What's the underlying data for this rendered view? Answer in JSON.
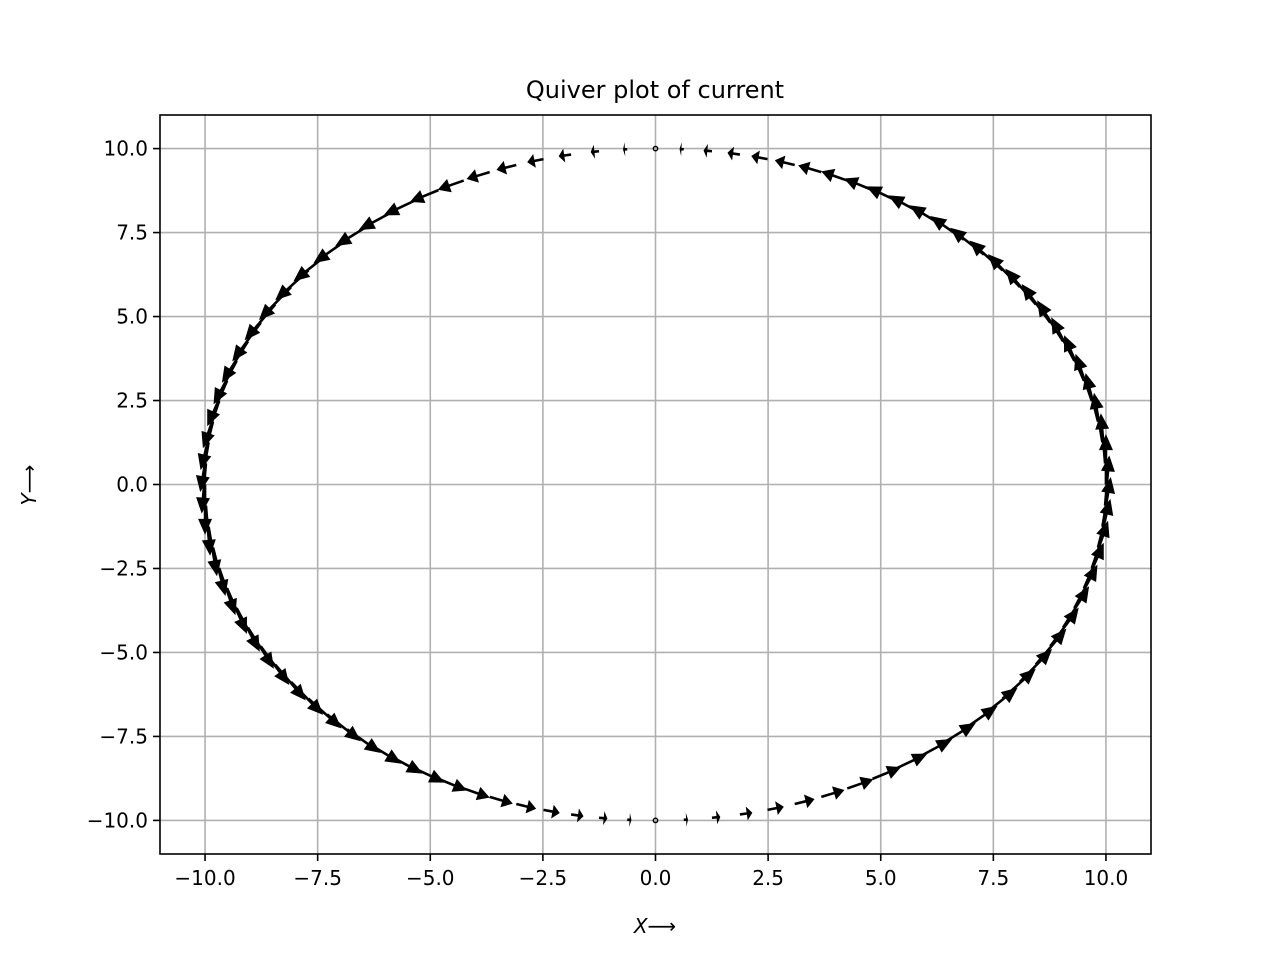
{
  "chart_data": {
    "type": "quiver",
    "title": "Quiver plot of current",
    "xlabel": "X⟶",
    "ylabel": "Y⟶",
    "xlim": [
      -11,
      11
    ],
    "ylim": [
      -11,
      11
    ],
    "xticks": [
      -10.0,
      -7.5,
      -5.0,
      -2.5,
      0.0,
      2.5,
      5.0,
      7.5,
      10.0
    ],
    "xtick_labels": [
      "−10.0",
      "−7.5",
      "−5.0",
      "−2.5",
      "0.0",
      "2.5",
      "5.0",
      "7.5",
      "10.0"
    ],
    "yticks": [
      10.0,
      7.5,
      5.0,
      2.5,
      0.0,
      -2.5,
      -5.0,
      -7.5,
      -10.0
    ],
    "ytick_labels": [
      "10.0",
      "7.5",
      "5.0",
      "2.5",
      "0.0",
      "−2.5",
      "−5.0",
      "−7.5",
      "−10.0"
    ],
    "grid": true,
    "arrow_color": "#000000",
    "grid_color": "#b0b0b0",
    "field": {
      "description_of_data": "Arrows placed on a circle of radius 10 centred at origin, tangent to the circle, pointing counter-clockwise; magnitude proportional to |x| (near zero at top and bottom)",
      "radius": 10,
      "count": 100,
      "direction": "counter-clockwise",
      "magnitude": "proportional to |x|"
    }
  }
}
